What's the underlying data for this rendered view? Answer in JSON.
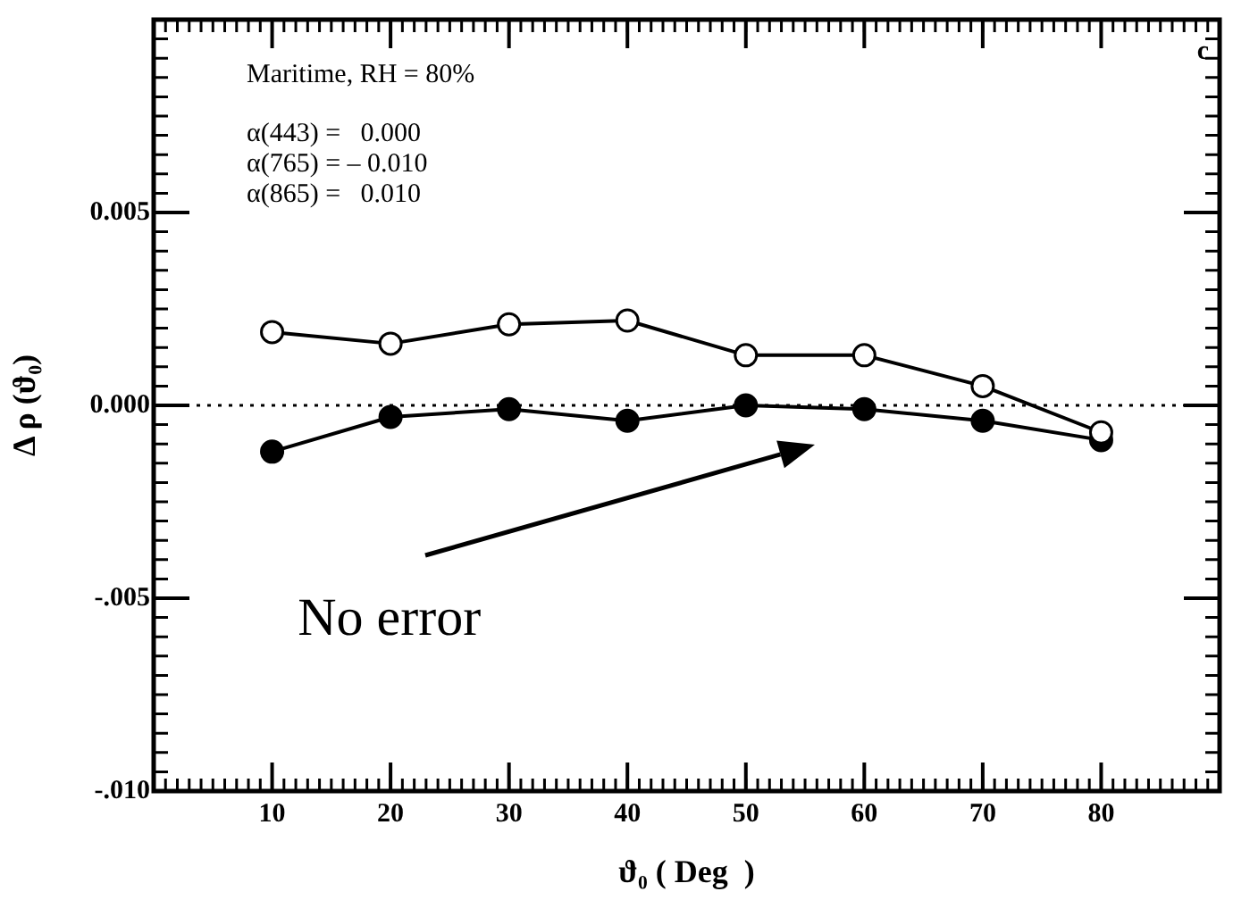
{
  "chart_data": {
    "type": "line",
    "xlabel": "ϑ₀ ( Deg  )",
    "ylabel": "Δ ρ (ϑ₀)",
    "x": [
      10,
      20,
      30,
      40,
      50,
      60,
      70,
      80
    ],
    "series": [
      {
        "color": "#000000",
        "values": [
          0.0019,
          0.0016,
          0.0021,
          0.0022,
          0.0013,
          0.0013,
          0.0005,
          -0.0007
        ]
      },
      {
        "color": "#000000",
        "values": [
          -0.0012,
          -0.0003,
          -0.0001,
          -0.0004,
          0.0,
          -0.0001,
          -0.0004,
          -0.0009
        ]
      }
    ],
    "xlim": [
      0,
      90
    ],
    "xticks": [
      10,
      20,
      30,
      40,
      50,
      60,
      70,
      80
    ],
    "ylim": [
      -0.01,
      0.01
    ],
    "yticks": [
      {
        "value": 0.005,
        "label": "0.005"
      },
      {
        "value": 0,
        "label": "0.000"
      },
      {
        "value": -0.005,
        "label": "-.005"
      },
      {
        "value": -0.01,
        "label": "-.010"
      }
    ],
    "ref_lines": [
      {
        "axis": "y",
        "value": 0,
        "line_style": "dotted"
      }
    ],
    "annotations": [
      "c",
      "Maritime, RH = 80%",
      "α(443) =   0.000",
      "α(765) = – 0.010",
      "α(865) =   0.010",
      "No error"
    ],
    "marker": "circle",
    "line_style": "solid",
    "grid": false,
    "legend": false
  }
}
